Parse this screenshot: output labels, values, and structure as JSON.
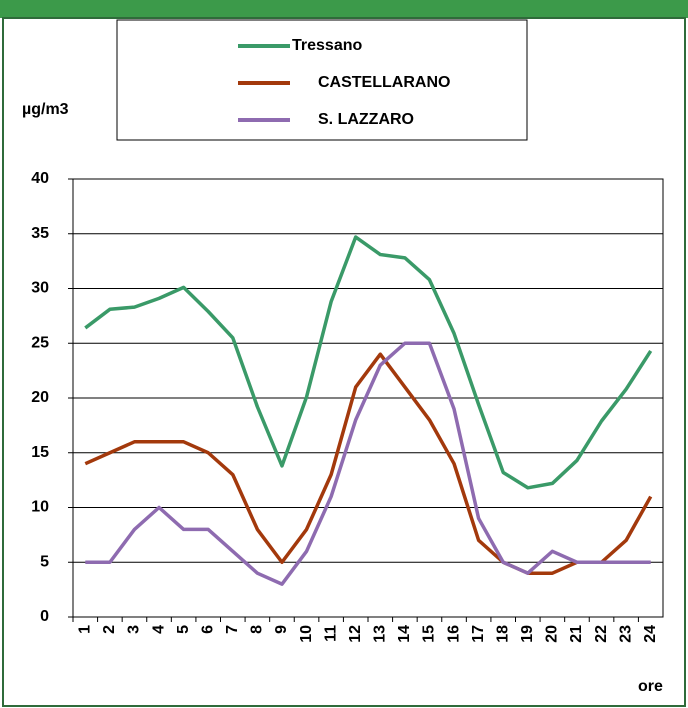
{
  "chart_data": {
    "type": "line",
    "y_label": "µg/m3",
    "x_label": "ore",
    "categories": [
      "1",
      "2",
      "3",
      "4",
      "5",
      "6",
      "7",
      "8",
      "9",
      "10",
      "11",
      "12",
      "13",
      "14",
      "15",
      "16",
      "17",
      "18",
      "19",
      "20",
      "21",
      "22",
      "23",
      "24"
    ],
    "series": [
      {
        "name": "Tressano",
        "color": "#3a9a68",
        "values": [
          26.4,
          28.1,
          28.3,
          29.1,
          30.1,
          27.9,
          25.5,
          19.2,
          13.8,
          20.1,
          28.8,
          34.7,
          33.1,
          32.8,
          30.8,
          25.9,
          19.4,
          13.2,
          11.8,
          12.2,
          14.3,
          17.9,
          20.8,
          24.3
        ]
      },
      {
        "name": "CASTELLARANO",
        "color": "#a3390c",
        "values": [
          14,
          15,
          16,
          16,
          16,
          15,
          13,
          8,
          5,
          8,
          13,
          21,
          24,
          21,
          18,
          14,
          7,
          5,
          4,
          4,
          5,
          5,
          7,
          11
        ]
      },
      {
        "name": "S. LAZZARO",
        "color": "#8e6bb0",
        "values": [
          5,
          5,
          8,
          10,
          8,
          8,
          6,
          4,
          3,
          6,
          11,
          18,
          23,
          25,
          25,
          19,
          9,
          5,
          4,
          6,
          5,
          5,
          5,
          5
        ]
      }
    ],
    "ylim": [
      0,
      40
    ],
    "yticks": [
      0,
      5,
      10,
      15,
      20,
      25,
      30,
      35,
      40
    ],
    "grid": true
  }
}
